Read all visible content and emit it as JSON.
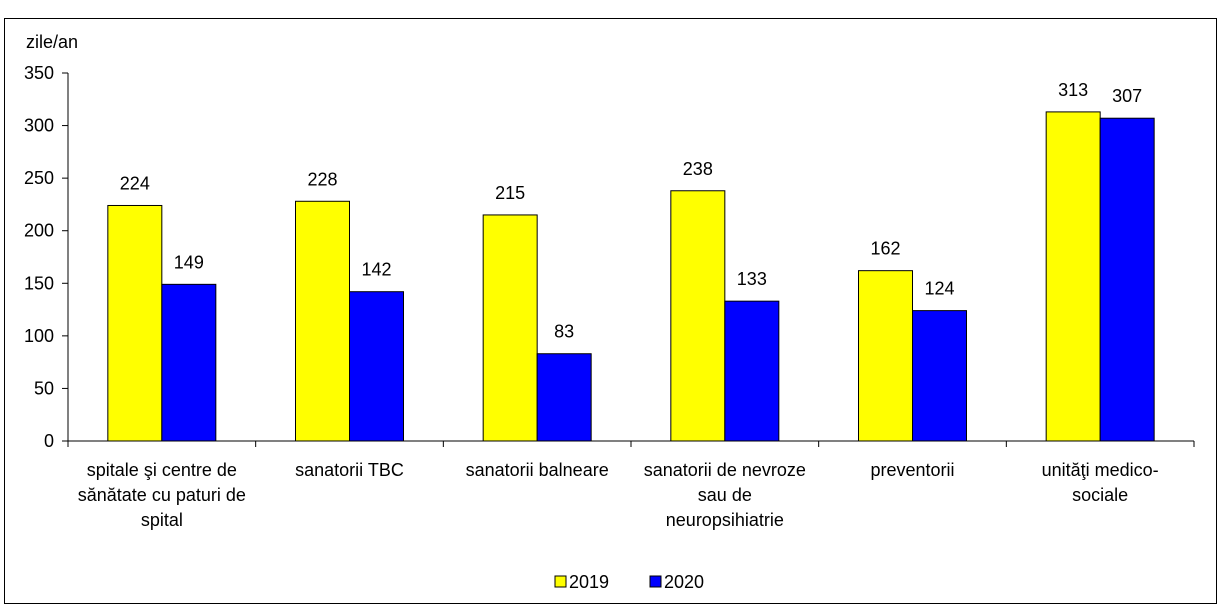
{
  "chart_data": {
    "type": "bar",
    "ylabel": "zile/an",
    "xlabel": "",
    "ylim": [
      0,
      350
    ],
    "yticks": [
      0,
      50,
      100,
      150,
      200,
      250,
      300,
      350
    ],
    "grid": false,
    "legend_position": "bottom-center",
    "categories": [
      [
        "spitale şi centre de",
        "sănătate cu paturi de",
        "spital"
      ],
      [
        "sanatorii TBC"
      ],
      [
        "sanatorii balneare"
      ],
      [
        "sanatorii de nevroze",
        "sau de",
        "neuropsihiatrie"
      ],
      [
        "preventorii"
      ],
      [
        "unităţi  medico-",
        "sociale"
      ]
    ],
    "series": [
      {
        "name": "2019",
        "color": "#FFFF00",
        "values": [
          224,
          228,
          215,
          238,
          162,
          313
        ]
      },
      {
        "name": "2020",
        "color": "#0000FF",
        "values": [
          149,
          142,
          83,
          133,
          124,
          307
        ]
      }
    ]
  }
}
